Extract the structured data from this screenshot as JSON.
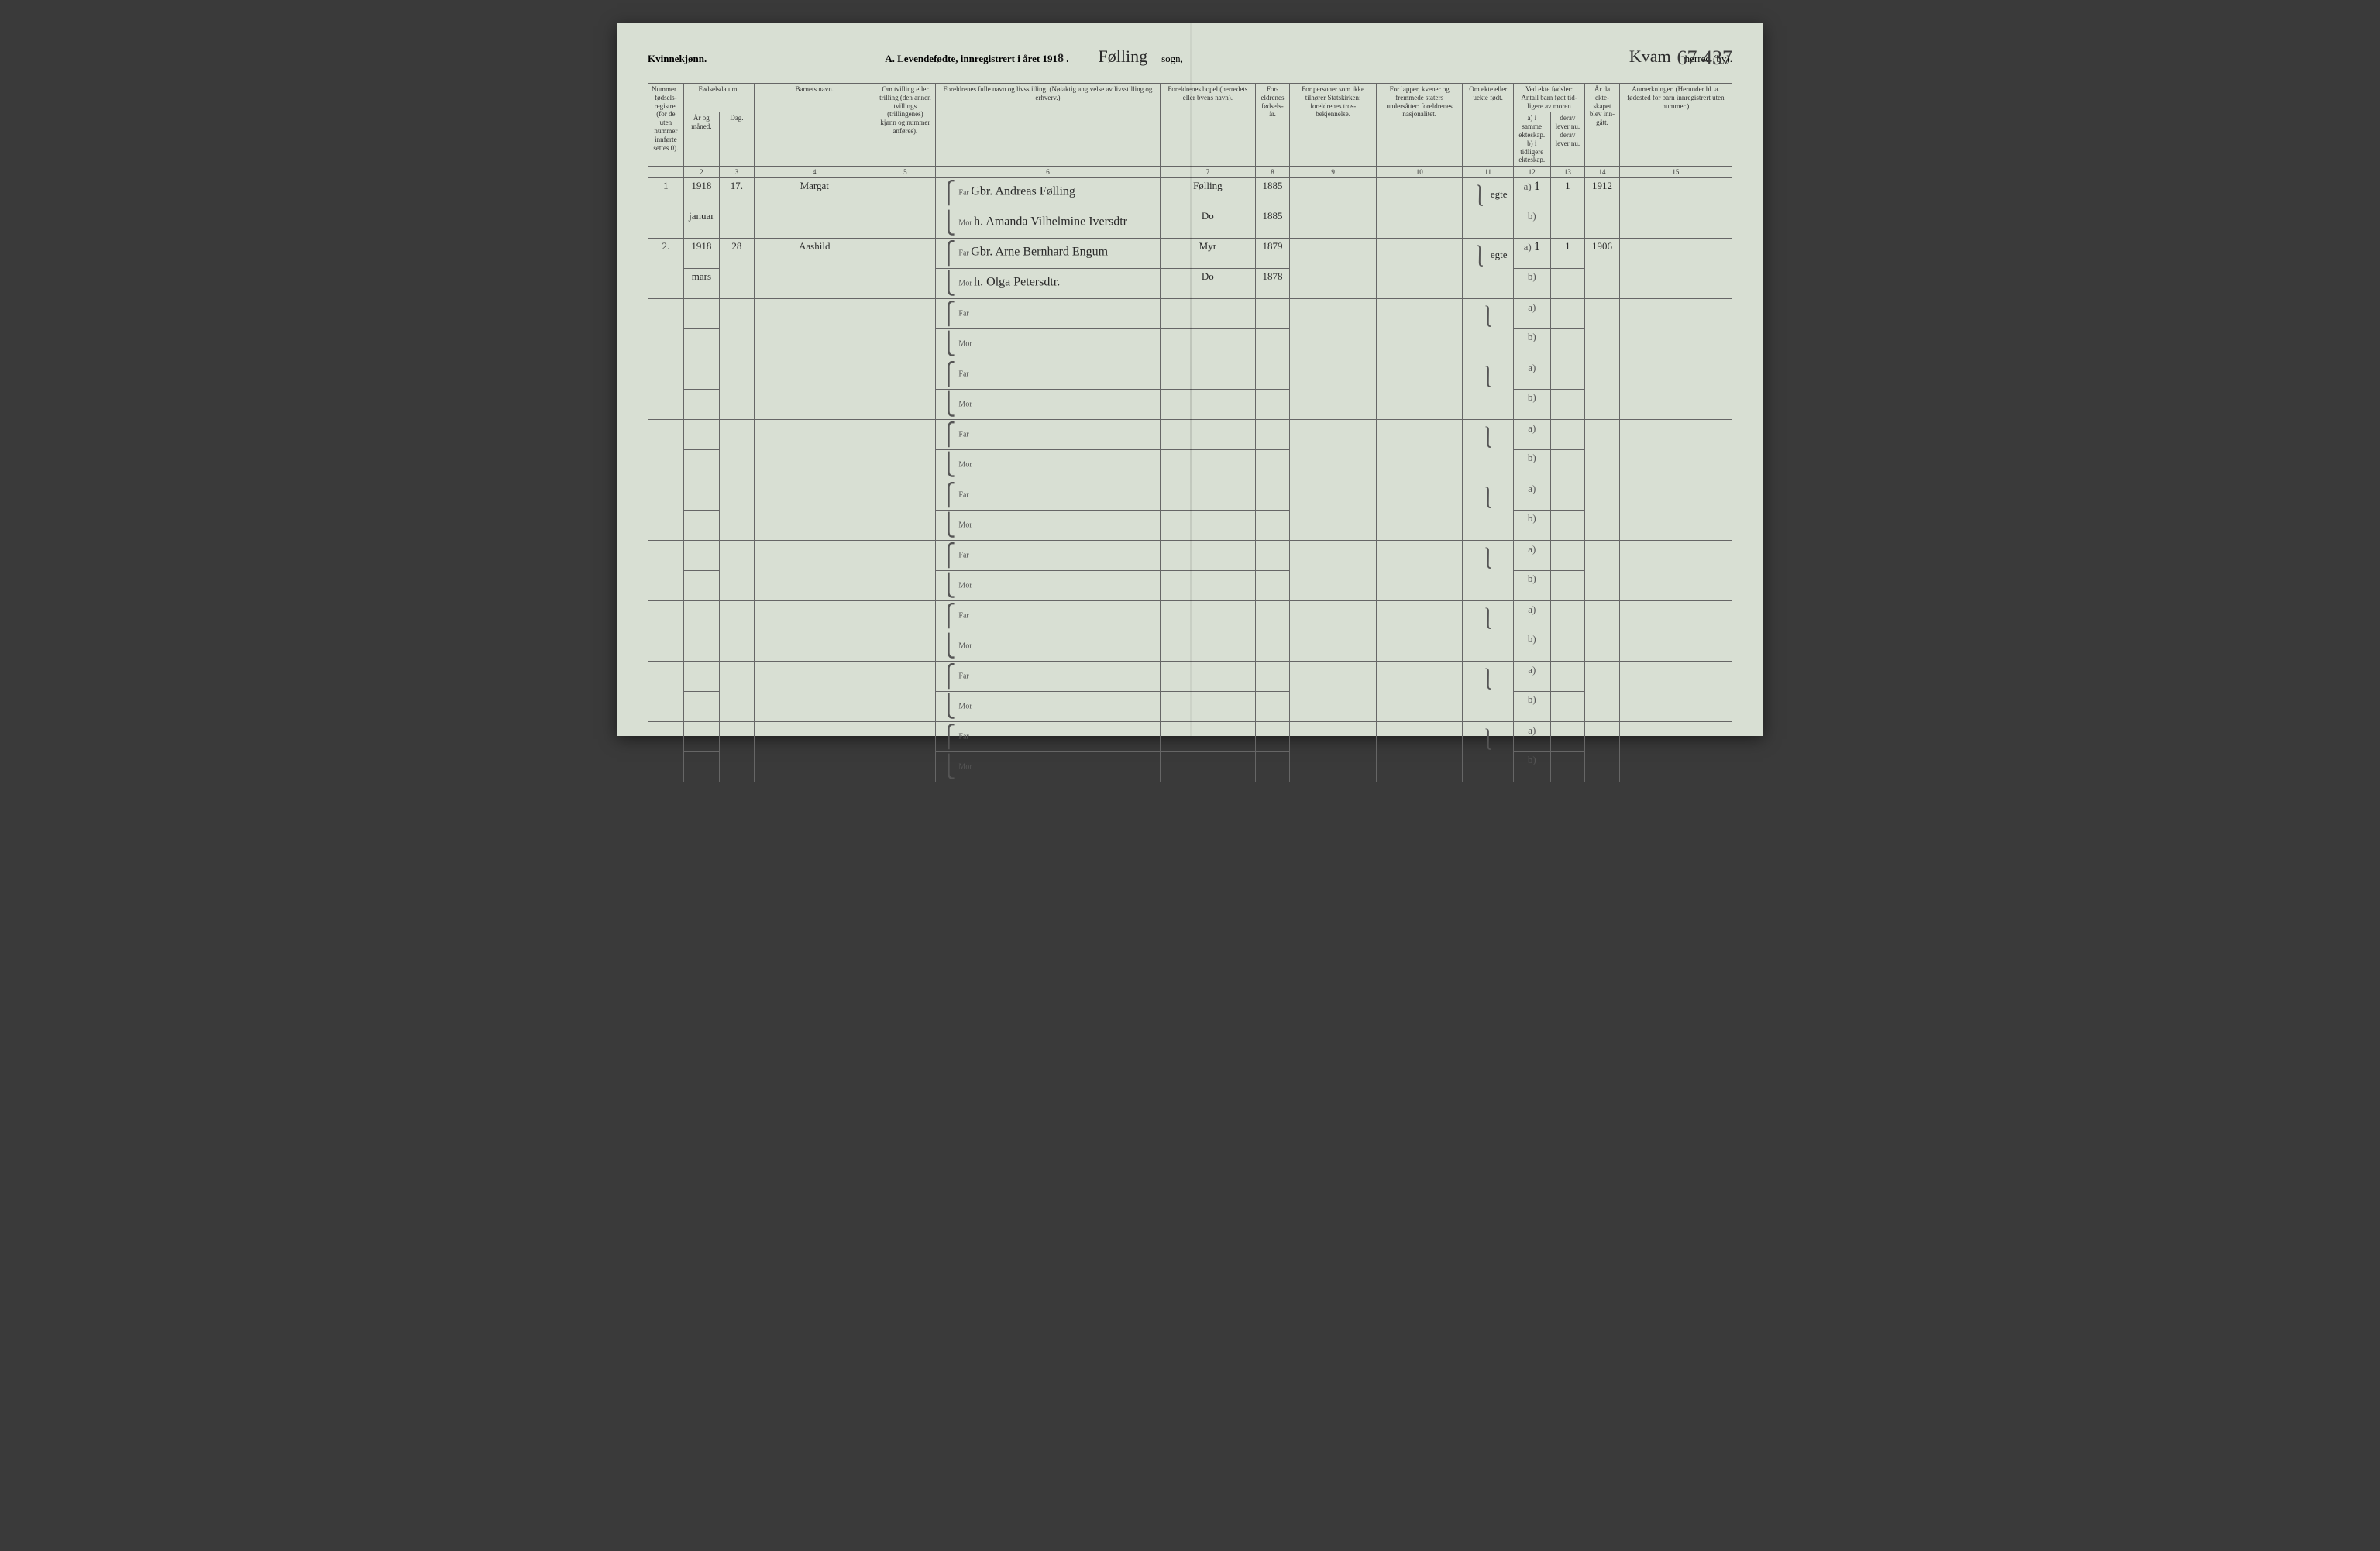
{
  "colors": {
    "paper": "#d8dfd3",
    "ink_print": "#333333",
    "ink_hand": "#2a2a2a",
    "rule": "#666666"
  },
  "header": {
    "gender": "Kvinnekjønn.",
    "title_prefix": "A.  Levendefødte, innregistrert i året 191",
    "year_digit": "8",
    "sogn_label": "sogn,",
    "sogn_value": "Følling",
    "herred_label": "herred (by).",
    "herred_value": "Kvam",
    "page_corner": "67 437"
  },
  "columns": {
    "c1": "Nummer i fødsels-registret (for de uten nummer innførte settes 0).",
    "c2_top": "Fødselsdatum.",
    "c2": "År og måned.",
    "c3": "Dag.",
    "c4": "Barnets navn.",
    "c5": "Om tvilling eller trilling (den annen tvillings (trillingenes) kjønn og nummer anføres).",
    "c6": "Foreldrenes fulle navn og livsstilling. (Nøiaktig angivelse av livsstilling og erhverv.)",
    "c7": "Foreldrenes bopel (herredets eller byens navn).",
    "c8": "For-eldrenes fødsels-år.",
    "c9": "For personer som ikke tilhører Statskirken: foreldrenes tros-bekjennelse.",
    "c10": "For lapper, kvener og fremmede staters undersåtter: foreldrenes nasjonalitet.",
    "c11": "Om ekte eller uekte født.",
    "c12_top": "Ved ekte fødsler: Antall barn født tid-ligere av moren",
    "c12": "a) i samme ekteskap.",
    "c12b": "b) i tidligere ekteskap.",
    "c13": "derav lever nu.",
    "c13b": "derav lever nu.",
    "c14": "År da ekte-skapet blev inn-gått.",
    "c15": "Anmerkninger. (Herunder bl. a. fødested for barn innregistrert uten nummer.)"
  },
  "colnums": [
    "1",
    "2",
    "3",
    "4",
    "5",
    "6",
    "7",
    "8",
    "9",
    "10",
    "11",
    "12",
    "13",
    "14",
    "15"
  ],
  "row_labels": {
    "far": "Far",
    "mor": "Mor",
    "a": "a)",
    "b": "b)"
  },
  "entries": [
    {
      "num": "1",
      "year": "1918",
      "month": "januar",
      "day": "17.",
      "child": "Margat",
      "far_name": "Gbr. Andreas Følling",
      "mor_name": "h. Amanda Vilhelmine Iversdtr",
      "far_place": "Følling",
      "mor_place": "Do",
      "far_year": "1885",
      "mor_year": "1885",
      "ekte": "egte",
      "a_same": "1",
      "a_live": "1",
      "marriage_year": "1912"
    },
    {
      "num": "2.",
      "year": "1918",
      "month": "mars",
      "day": "28",
      "child": "Aashild",
      "far_name": "Gbr. Arne Bernhard Engum",
      "mor_name": "h. Olga Petersdtr.",
      "far_place": "Myr",
      "mor_place": "Do",
      "far_year": "1879",
      "mor_year": "1878",
      "ekte": "egte",
      "a_same": "1",
      "a_live": "1",
      "marriage_year": "1906"
    }
  ],
  "blank_rows": 8
}
